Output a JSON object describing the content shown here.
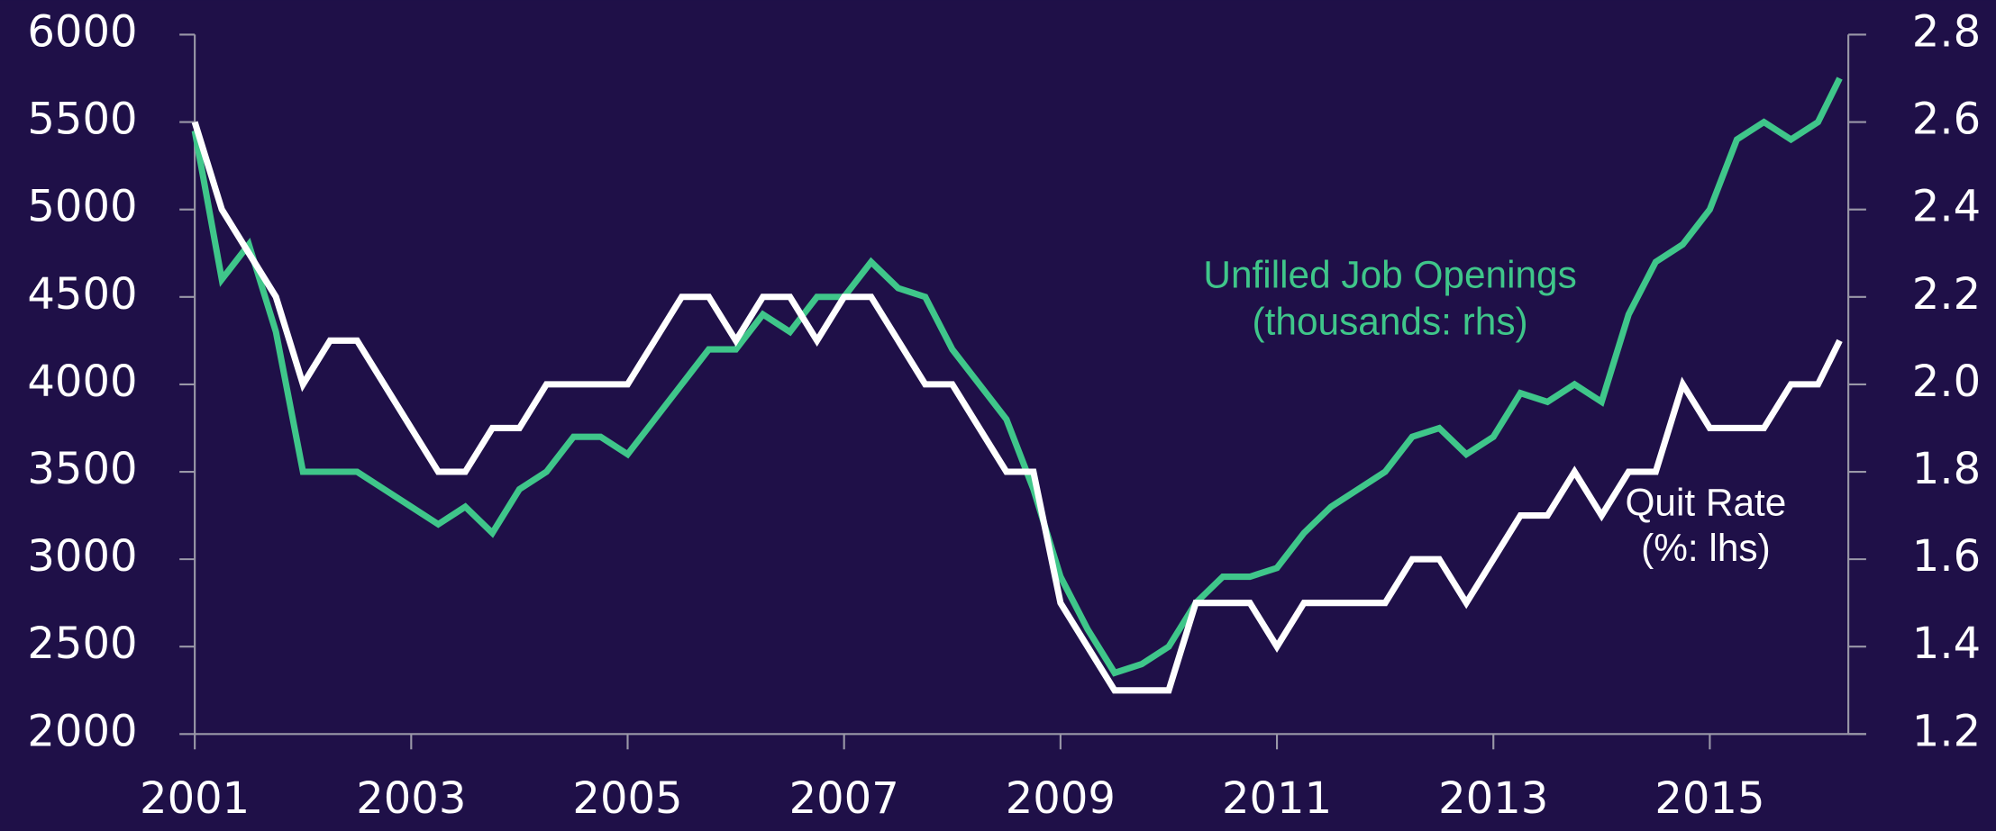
{
  "chart_data": {
    "type": "line",
    "x": [
      2001,
      2001.25,
      2001.5,
      2001.75,
      2002,
      2002.25,
      2002.5,
      2002.75,
      2003,
      2003.25,
      2003.5,
      2003.75,
      2004,
      2004.25,
      2004.5,
      2004.75,
      2005,
      2005.25,
      2005.5,
      2005.75,
      2006,
      2006.25,
      2006.5,
      2006.75,
      2007,
      2007.25,
      2007.5,
      2007.75,
      2008,
      2008.25,
      2008.5,
      2008.75,
      2009,
      2009.25,
      2009.5,
      2009.75,
      2010,
      2010.25,
      2010.5,
      2010.75,
      2011,
      2011.25,
      2011.5,
      2011.75,
      2012,
      2012.25,
      2012.5,
      2012.75,
      2013,
      2013.25,
      2013.5,
      2013.75,
      2014,
      2014.25,
      2014.5,
      2014.75,
      2015,
      2015.25,
      2015.5,
      2015.75,
      2016,
      2016.2
    ],
    "series": [
      {
        "color": "#3fc68a",
        "axis": "y",
        "values": [
          5450,
          4600,
          4800,
          4300,
          3500,
          3500,
          3500,
          3400,
          3300,
          3200,
          3300,
          3150,
          3400,
          3500,
          3700,
          3700,
          3600,
          3800,
          4000,
          4200,
          4200,
          4400,
          4300,
          4500,
          4500,
          4700,
          4550,
          4500,
          4200,
          4000,
          3800,
          3400,
          2900,
          2600,
          2350,
          2400,
          2500,
          2750,
          2900,
          2900,
          2950,
          3150,
          3300,
          3400,
          3500,
          3700,
          3750,
          3600,
          3700,
          3950,
          3900,
          4000,
          3900,
          4400,
          4700,
          4800,
          5000,
          5400,
          5500,
          5400,
          5500,
          5750
        ]
      },
      {
        "color": "#ffffff",
        "axis": "y2",
        "values": [
          2.6,
          2.4,
          2.3,
          2.2,
          2.0,
          2.1,
          2.1,
          2.0,
          1.9,
          1.8,
          1.8,
          1.9,
          1.9,
          2.0,
          2.0,
          2.0,
          2.0,
          2.1,
          2.2,
          2.2,
          2.1,
          2.2,
          2.2,
          2.1,
          2.2,
          2.2,
          2.1,
          2.0,
          2.0,
          1.9,
          1.8,
          1.8,
          1.5,
          1.4,
          1.3,
          1.3,
          1.3,
          1.5,
          1.5,
          1.5,
          1.4,
          1.5,
          1.5,
          1.5,
          1.5,
          1.6,
          1.6,
          1.5,
          1.6,
          1.7,
          1.7,
          1.8,
          1.7,
          1.8,
          1.8,
          2.0,
          1.9,
          1.9,
          1.9,
          2.0,
          2.0,
          2.1
        ]
      }
    ],
    "annotations": [
      {
        "text": "Unfilled Job Openings",
        "color": "#3fc68a"
      },
      {
        "text": "(thousands: rhs)",
        "color": "#3fc68a"
      },
      {
        "text": "Quit Rate",
        "color": "#ffffff"
      },
      {
        "text": "(%: lhs)",
        "color": "#ffffff"
      }
    ],
    "xlim": [
      2001,
      2016.28
    ],
    "xticks": [
      2001,
      2003,
      2005,
      2007,
      2009,
      2011,
      2013,
      2015
    ],
    "ylim": [
      2000,
      6000
    ],
    "yticks": [
      2000,
      2500,
      3000,
      3500,
      4000,
      4500,
      5000,
      5500,
      6000
    ],
    "y2lim": [
      1.2,
      2.8
    ],
    "y2ticks": [
      1.2,
      1.4,
      1.6,
      1.8,
      {
        "value": 2.0,
        "label": "2.0"
      },
      2.2,
      2.4,
      2.6,
      2.8
    ]
  }
}
